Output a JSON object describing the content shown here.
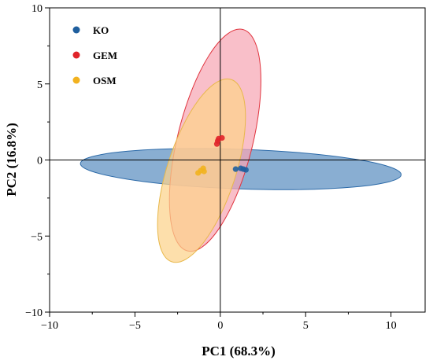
{
  "chart_data": {
    "type": "scatter",
    "title": "",
    "xlabel": "PC1 (68.3%)",
    "ylabel": "PC2 (16.8%)",
    "xlim": [
      -10,
      12
    ],
    "ylim": [
      -10,
      10
    ],
    "xticks": [
      -10,
      -5,
      0,
      5,
      10
    ],
    "yticks": [
      -10,
      -5,
      0,
      5,
      10
    ],
    "legend_position": "top-left",
    "reference_lines": {
      "x": 0,
      "y": 0
    },
    "series": [
      {
        "name": "KO",
        "color": "#1f5f9e",
        "points": [
          [
            0.9,
            -0.6
          ],
          [
            1.2,
            -0.55
          ],
          [
            1.35,
            -0.6
          ],
          [
            1.5,
            -0.65
          ]
        ],
        "ellipse": {
          "center": [
            1.2,
            -0.6
          ],
          "semi_x": 9.4,
          "semi_y": 1.3,
          "tilt_deg": 2,
          "fill": "#5b8fc0",
          "stroke": "#2c6aa8"
        }
      },
      {
        "name": "GEM",
        "color": "#e0242a",
        "points": [
          [
            -0.2,
            1.05
          ],
          [
            -0.1,
            1.4
          ],
          [
            0.1,
            1.45
          ],
          [
            -0.15,
            1.25
          ]
        ],
        "ellipse": {
          "center": [
            -0.3,
            1.3
          ],
          "semi_x": 2.2,
          "semi_y": 7.5,
          "tilt_deg": 14,
          "fill": "#f7a6b4",
          "stroke": "#e0343e"
        }
      },
      {
        "name": "OSM",
        "color": "#f2b21f",
        "points": [
          [
            -1.3,
            -0.85
          ],
          [
            -1.0,
            -0.55
          ],
          [
            -0.95,
            -0.75
          ],
          [
            -1.15,
            -0.7
          ]
        ],
        "ellipse": {
          "center": [
            -1.1,
            -0.7
          ],
          "semi_x": 2.0,
          "semi_y": 6.3,
          "tilt_deg": 18,
          "fill": "#fcd38a",
          "stroke": "#e8b84a"
        }
      }
    ]
  }
}
